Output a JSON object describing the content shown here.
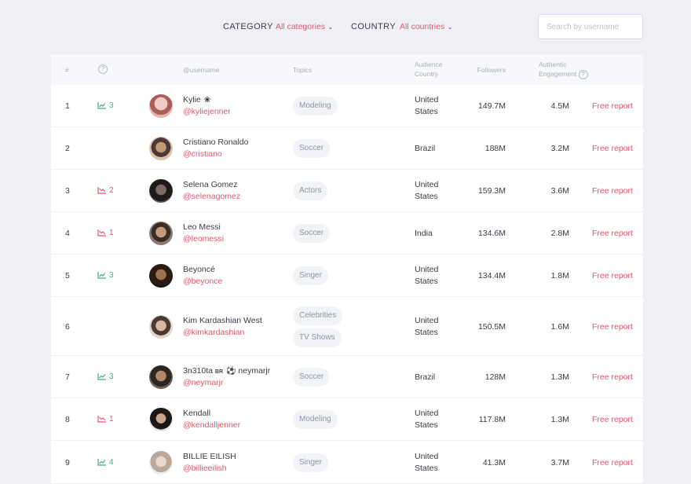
{
  "filters": {
    "category_label": "CATEGORY",
    "category_value": "All categories",
    "country_label": "COUNTRY",
    "country_value": "All countries",
    "search_placeholder": "Search by username"
  },
  "table": {
    "headers": {
      "rank": "#",
      "trend": "?",
      "username": "@username",
      "topics": "Topics",
      "audience_country_line1": "Audience",
      "audience_country_line2": "Country",
      "followers": "Followers",
      "engagement_line1": "Authentic",
      "engagement_line2": "Engagement",
      "engagement_help": "?"
    },
    "report_label": "Free report",
    "rows": [
      {
        "rank": "1",
        "trend_dir": "up",
        "trend": "3",
        "name": "Kylie",
        "handle": "@kyliejenner",
        "topics": [
          "Modeling"
        ],
        "country": [
          "United",
          "States"
        ],
        "followers": "149.7M",
        "engagement": "4.5M"
      },
      {
        "rank": "2",
        "trend_dir": "",
        "trend": "",
        "name": "Cristiano Ronaldo",
        "handle": "@cristiano",
        "topics": [
          "Soccer"
        ],
        "country": [
          "Brazil"
        ],
        "followers": "188M",
        "engagement": "3.2M"
      },
      {
        "rank": "3",
        "trend_dir": "down",
        "trend": "2",
        "name": "Selena Gomez",
        "handle": "@selenagomez",
        "topics": [
          "Actors"
        ],
        "country": [
          "United",
          "States"
        ],
        "followers": "159.3M",
        "engagement": "3.6M"
      },
      {
        "rank": "4",
        "trend_dir": "down",
        "trend": "1",
        "name": "Leo Messi",
        "handle": "@leomessi",
        "topics": [
          "Soccer"
        ],
        "country": [
          "India"
        ],
        "followers": "134.6M",
        "engagement": "2.8M"
      },
      {
        "rank": "5",
        "trend_dir": "up",
        "trend": "3",
        "name": "Beyoncé",
        "handle": "@beyonce",
        "topics": [
          "Singer"
        ],
        "country": [
          "United",
          "States"
        ],
        "followers": "134.4M",
        "engagement": "1.8M"
      },
      {
        "rank": "6",
        "trend_dir": "",
        "trend": "",
        "name": "Kim Kardashian West",
        "handle": "@kimkardashian",
        "topics": [
          "Celebrities",
          "TV Shows"
        ],
        "country": [
          "United",
          "States"
        ],
        "followers": "150.5M",
        "engagement": "1.6M"
      },
      {
        "rank": "7",
        "trend_dir": "up",
        "trend": "3",
        "name": "3n310ta",
        "name_badge": "BR",
        "name_suffix": "neymarjr",
        "handle": "@neymarjr",
        "topics": [
          "Soccer"
        ],
        "country": [
          "Brazil"
        ],
        "followers": "128M",
        "engagement": "1.3M"
      },
      {
        "rank": "8",
        "trend_dir": "down",
        "trend": "1",
        "name": "Kendall",
        "handle": "@kendalljenner",
        "topics": [
          "Modeling"
        ],
        "country": [
          "United",
          "States"
        ],
        "followers": "117.8M",
        "engagement": "1.3M"
      },
      {
        "rank": "9",
        "trend_dir": "up",
        "trend": "4",
        "name": "BILLIE EILISH",
        "handle": "@billieeilish",
        "topics": [
          "Singer"
        ],
        "country": [
          "United",
          "States"
        ],
        "followers": "41.3M",
        "engagement": "3.7M"
      }
    ]
  },
  "colors": {
    "accent": "#e0566a",
    "trend_up": "#3fb07a",
    "trend_down": "#e0566a"
  }
}
